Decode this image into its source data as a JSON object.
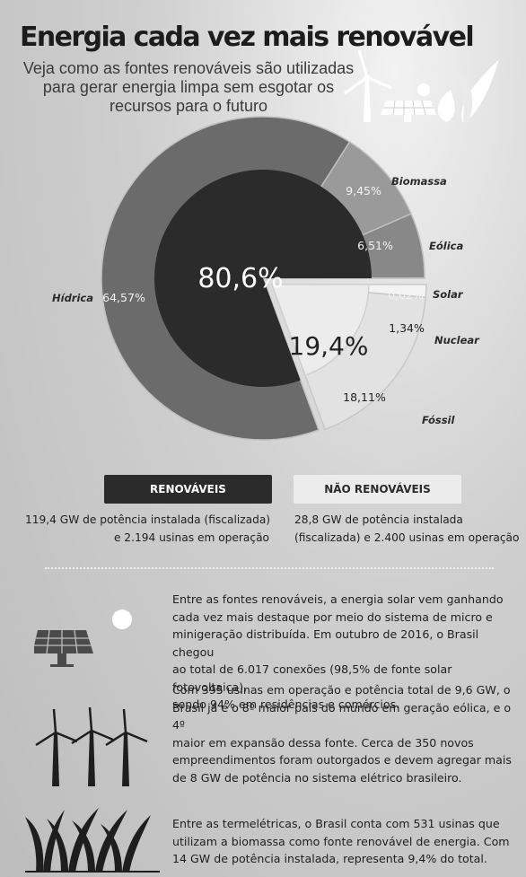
{
  "header": {
    "title": "Energia cada vez mais renovável",
    "subtitle": "Veja como as fontes renováveis são utilizadas para gerar energia limpa sem esgotar os recursos para o futuro"
  },
  "chart_data": {
    "type": "pie",
    "inner": [
      {
        "name": "Renováveis",
        "value": 80.6,
        "label": "80,6%",
        "color": "#2b2b2b"
      },
      {
        "name": "Não renováveis",
        "value": 19.4,
        "label": "19,4%",
        "color": "#ececec"
      }
    ],
    "outer": [
      {
        "name": "Hídrica",
        "value": 64.57,
        "label": "64,57%",
        "color": "#6b6b6b"
      },
      {
        "name": "Biomassa",
        "value": 9.45,
        "label": "9,45%",
        "color": "#9a9a9a"
      },
      {
        "name": "Eólica",
        "value": 6.51,
        "label": "6,51%",
        "color": "#888888"
      },
      {
        "name": "Solar",
        "value": 0.02,
        "label": "0,02%",
        "color": "#bbbbbb"
      },
      {
        "name": "Nuclear",
        "value": 1.34,
        "label": "1,34%",
        "color": "#f3f3f3"
      },
      {
        "name": "Fóssil",
        "value": 18.11,
        "label": "18,11%",
        "color": "#e2e2e2"
      }
    ]
  },
  "legend": {
    "renewable_label": "RENOVÁVEIS",
    "nonrenewable_label": "NÃO RENOVÁVEIS",
    "renewable_caption_1": "119,4 GW de potência instalada (fiscalizada)",
    "renewable_caption_2": "e 2.194 usinas em operação",
    "nonrenewable_caption_1": "28,8 GW de potência instalada",
    "nonrenewable_caption_2": "(fiscalizada) e  2.400 usinas em operação"
  },
  "sections": {
    "solar": [
      "Entre as fontes renováveis, a energia solar vem ganhando",
      "cada vez mais destaque por meio do sistema de micro e",
      "minigeração distribuída. Em outubro de 2016, o Brasil chegou",
      "ao total de 6.017 conexões (98,5% de fonte solar fotovoltaica),",
      "sendo 94% em residências e comércios."
    ],
    "wind": [
      "Com 395 usinas em operação e potência total de 9,6 GW, o",
      "Brasil já é o 8º maior país do mundo em geração eólica, e o 4º",
      "maior em expansão dessa fonte. Cerca de 350 novos",
      "empreendimentos foram outorgados e devem agregar mais",
      "de 8 GW de potência no sistema elétrico brasileiro."
    ],
    "biomass": [
      "Entre as termelétricas, o Brasil conta com 531 usinas que",
      "utilizam a biomassa como fonte renovável de energia. Com",
      "14 GW de potência instalada, representa 9,4% do total."
    ]
  },
  "icons": [
    "wind-turbine-icon",
    "solar-panel-icon",
    "leaf-drop-icon",
    "sun-icon",
    "sugarcane-icon"
  ]
}
